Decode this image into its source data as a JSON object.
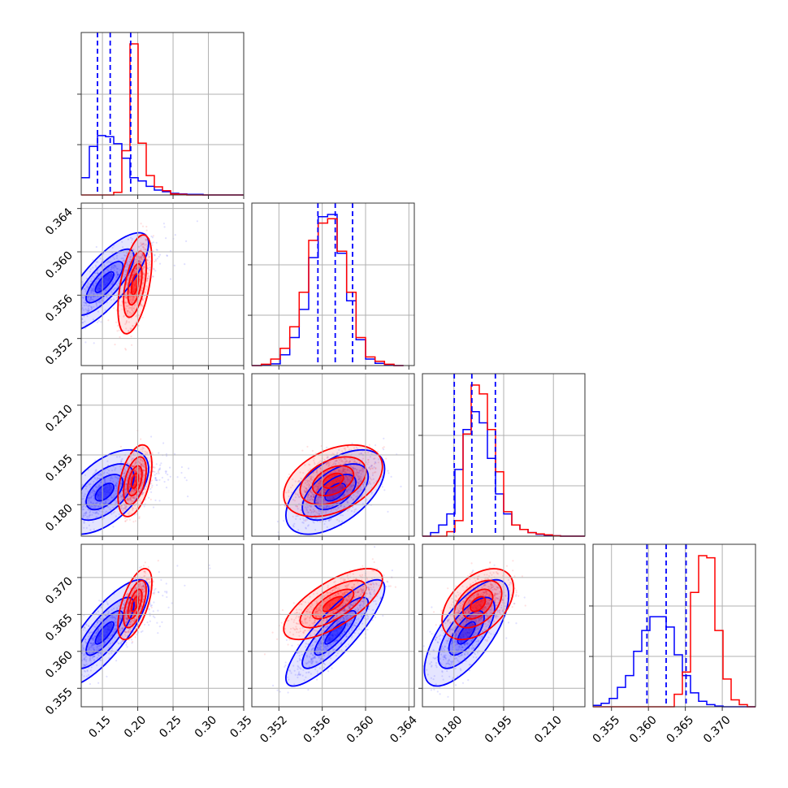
{
  "chart_data": {
    "type": "corner",
    "parameters": [
      {
        "range": [
          0.12,
          0.35
        ],
        "ticks": [
          "0.15",
          "0.20",
          "0.25",
          "0.30",
          "0.35"
        ]
      },
      {
        "range": [
          0.3495,
          0.3645
        ],
        "ticks": [
          "0.352",
          "0.356",
          "0.360",
          "0.364"
        ]
      },
      {
        "range": [
          0.1705,
          0.2195
        ],
        "ticks": [
          "0.180",
          "0.195",
          "0.210"
        ]
      },
      {
        "range": [
          0.3525,
          0.3745
        ],
        "ticks": [
          "0.355",
          "0.360",
          "0.365",
          "0.370"
        ]
      }
    ],
    "series": [
      {
        "color": "#0000ff",
        "means": [
          0.153,
          0.3572,
          0.1838,
          0.3625
        ],
        "stds": [
          0.026,
          0.0019,
          0.0053,
          0.003
        ],
        "correlations": {
          "0-1": 0.78,
          "0-2": 0.55,
          "0-3": 0.8,
          "1-2": 0.55,
          "1-3": 0.85,
          "2-3": 0.7
        }
      },
      {
        "color": "#ff0000",
        "means": [
          0.196,
          0.357,
          0.1872,
          0.3664
        ],
        "stds": [
          0.01,
          0.0019,
          0.0045,
          0.002
        ],
        "correlations": {
          "0-1": 0.5,
          "0-2": 0.45,
          "0-3": 0.6,
          "1-2": 0.4,
          "1-3": 0.7,
          "2-3": 0.45
        }
      }
    ],
    "histograms": [
      {
        "bin_edges": [
          0.12,
          0.1315,
          0.143,
          0.1545,
          0.166,
          0.1775,
          0.189,
          0.2005,
          0.212,
          0.2235,
          0.235,
          0.2465,
          0.258,
          0.2695,
          0.281,
          0.2925,
          0.304,
          0.3155,
          0.327,
          0.3385,
          0.35
        ],
        "blue": [
          32,
          90,
          110,
          108,
          95,
          68,
          32,
          26,
          16,
          9,
          6,
          3,
          2,
          1,
          1,
          0,
          0,
          0,
          0,
          0
        ],
        "red": [
          0,
          0,
          0,
          0,
          5,
          82,
          280,
          96,
          36,
          15,
          8,
          2,
          1,
          0,
          0,
          0,
          0,
          0,
          0,
          0
        ]
      },
      {
        "bin_edges": [
          0.3495,
          0.350375,
          0.35125,
          0.352125,
          0.353,
          0.353875,
          0.35475,
          0.355625,
          0.3565,
          0.357375,
          0.35825,
          0.359125,
          0.36,
          0.360875,
          0.36175,
          0.362625,
          0.3635
        ],
        "blue": [
          0,
          2,
          4,
          25,
          65,
          130,
          250,
          345,
          350,
          260,
          150,
          60,
          15,
          5,
          2,
          0
        ],
        "red": [
          0,
          3,
          15,
          40,
          90,
          170,
          290,
          330,
          340,
          265,
          170,
          65,
          20,
          10,
          3,
          0
        ]
      },
      {
        "bin_edges": [
          0.1705,
          0.17295,
          0.1754,
          0.17785,
          0.1803,
          0.18275,
          0.1852,
          0.18765,
          0.1901,
          0.19255,
          0.195,
          0.19745,
          0.1999,
          0.20235,
          0.2048,
          0.20725,
          0.2097,
          0.21215,
          0.2146,
          0.21705,
          0.2195
        ],
        "blue": [
          0,
          8,
          25,
          50,
          150,
          240,
          280,
          255,
          175,
          95,
          50,
          25,
          15,
          8,
          4,
          2,
          1,
          0,
          0,
          0
        ],
        "red": [
          0,
          0,
          0,
          10,
          35,
          230,
          340,
          320,
          240,
          145,
          55,
          25,
          15,
          8,
          5,
          3,
          1,
          0,
          0,
          0
        ]
      },
      {
        "bin_edges": [
          0.3525,
          0.3536,
          0.3547,
          0.3558,
          0.3569,
          0.358,
          0.3591,
          0.3602,
          0.3613,
          0.3624,
          0.3635,
          0.3646,
          0.3657,
          0.3668,
          0.3679,
          0.369,
          0.3701,
          0.3712,
          0.3723,
          0.3734,
          0.3745
        ],
        "blue": [
          2,
          5,
          12,
          28,
          45,
          80,
          110,
          130,
          130,
          115,
          75,
          45,
          20,
          8,
          3,
          1,
          0,
          0,
          0,
          0
        ],
        "red": [
          0,
          0,
          0,
          0,
          0,
          0,
          0,
          0,
          0,
          0,
          18,
          50,
          165,
          218,
          215,
          110,
          40,
          10,
          3,
          0
        ]
      }
    ],
    "quantile_lines": [
      [
        0.143,
        0.161,
        0.19
      ],
      [
        0.3556,
        0.3572,
        0.3588
      ],
      [
        0.1801,
        0.1854,
        0.1925
      ],
      [
        0.3598,
        0.3624,
        0.3651
      ]
    ],
    "grid": true
  }
}
